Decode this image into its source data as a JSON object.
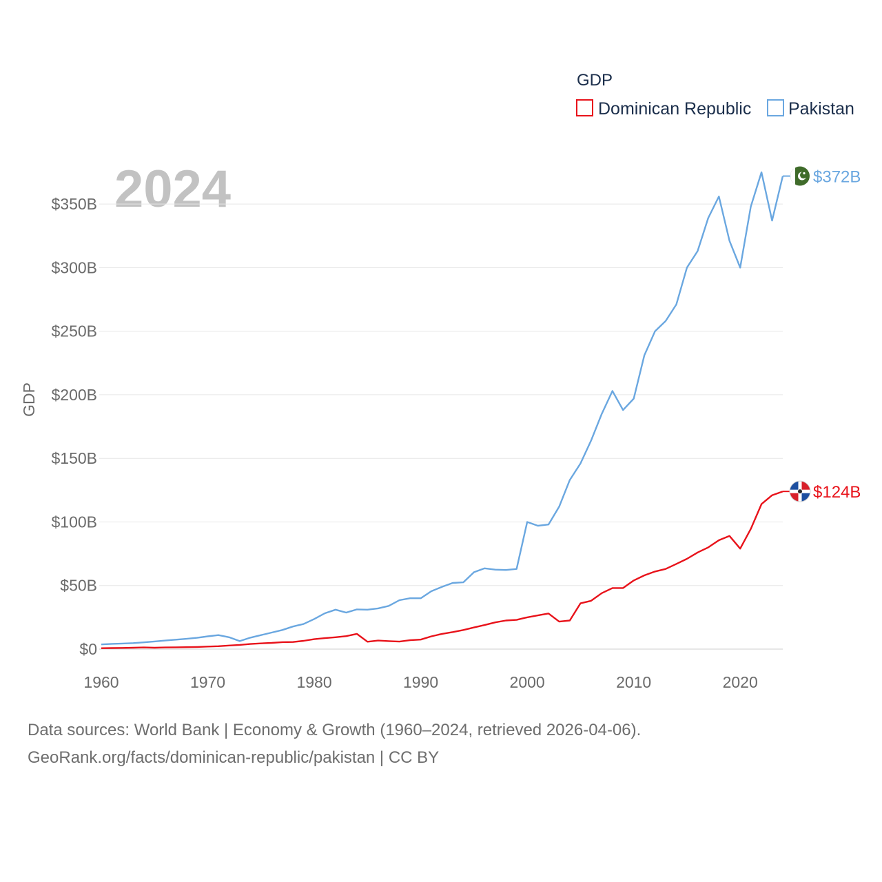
{
  "chart_data": {
    "type": "line",
    "title": "GDP",
    "ylabel": "GDP",
    "xlabel": "",
    "year_label": "2024",
    "xlim": [
      1960,
      2024
    ],
    "ylim": [
      0,
      375
    ],
    "x_ticks": [
      1960,
      1970,
      1980,
      1990,
      2000,
      2010,
      2020
    ],
    "y_ticks": [
      {
        "value": 0,
        "label": "$0"
      },
      {
        "value": 50,
        "label": "$50B"
      },
      {
        "value": 100,
        "label": "$100B"
      },
      {
        "value": 150,
        "label": "$150B"
      },
      {
        "value": 200,
        "label": "$200B"
      },
      {
        "value": 250,
        "label": "$250B"
      },
      {
        "value": 300,
        "label": "$300B"
      },
      {
        "value": 350,
        "label": "$350B"
      }
    ],
    "grid": true,
    "legend_position": "top-right",
    "units": "billion USD",
    "series": [
      {
        "name": "Dominican Republic",
        "color": "#e8121a",
        "end_label": "$124B",
        "flag": "dominican-republic-flag-icon",
        "x": [
          1960,
          1961,
          1962,
          1963,
          1964,
          1965,
          1966,
          1967,
          1968,
          1969,
          1970,
          1971,
          1972,
          1973,
          1974,
          1975,
          1976,
          1977,
          1978,
          1979,
          1980,
          1981,
          1982,
          1983,
          1984,
          1985,
          1986,
          1987,
          1988,
          1989,
          1990,
          1991,
          1992,
          1993,
          1994,
          1995,
          1996,
          1997,
          1998,
          1999,
          2000,
          2001,
          2002,
          2003,
          2004,
          2005,
          2006,
          2007,
          2008,
          2009,
          2010,
          2011,
          2012,
          2013,
          2014,
          2015,
          2016,
          2017,
          2018,
          2019,
          2020,
          2021,
          2022,
          2023,
          2024
        ],
        "values": [
          0.7,
          0.8,
          0.9,
          1.1,
          1.3,
          1.1,
          1.3,
          1.4,
          1.5,
          1.7,
          2.0,
          2.3,
          2.8,
          3.3,
          4.0,
          4.5,
          4.9,
          5.5,
          5.6,
          6.5,
          7.8,
          8.6,
          9.3,
          10.2,
          12.0,
          5.8,
          6.7,
          6.3,
          5.9,
          7.0,
          7.5,
          10.0,
          12.0,
          13.4,
          15.0,
          17.0,
          18.9,
          21.0,
          22.5,
          23.0,
          25.0,
          26.5,
          28.0,
          21.6,
          22.5,
          36.0,
          38.0,
          44.0,
          48.0,
          48.0,
          54.0,
          58.0,
          61.0,
          63.0,
          67.0,
          71.0,
          76.0,
          80.0,
          85.6,
          89.0,
          79.0,
          94.5,
          114.0,
          121.0,
          124.0
        ]
      },
      {
        "name": "Pakistan",
        "color": "#6aa7e0",
        "end_label": "$372B",
        "flag": "pakistan-flag-icon",
        "x": [
          1960,
          1961,
          1962,
          1963,
          1964,
          1965,
          1966,
          1967,
          1968,
          1969,
          1970,
          1971,
          1972,
          1973,
          1974,
          1975,
          1976,
          1977,
          1978,
          1979,
          1980,
          1981,
          1982,
          1983,
          1984,
          1985,
          1986,
          1987,
          1988,
          1989,
          1990,
          1991,
          1992,
          1993,
          1994,
          1995,
          1996,
          1997,
          1998,
          1999,
          2000,
          2001,
          2002,
          2003,
          2004,
          2005,
          2006,
          2007,
          2008,
          2009,
          2010,
          2011,
          2012,
          2013,
          2014,
          2015,
          2016,
          2017,
          2018,
          2019,
          2020,
          2021,
          2022,
          2023,
          2024
        ],
        "values": [
          3.7,
          4.1,
          4.4,
          4.7,
          5.3,
          6.0,
          6.7,
          7.4,
          8.1,
          8.9,
          10.0,
          11.0,
          9.3,
          6.3,
          9.0,
          11.0,
          13.0,
          15.0,
          17.8,
          19.7,
          23.7,
          28.2,
          31.0,
          28.7,
          31.2,
          31.0,
          32.0,
          34.0,
          38.5,
          40.0,
          40.0,
          45.5,
          49.0,
          52.0,
          52.5,
          60.5,
          63.5,
          62.5,
          62.2,
          63.0,
          100.0,
          97.0,
          98.0,
          112.0,
          133.0,
          146.0,
          164.0,
          185.0,
          203.0,
          188.0,
          197.0,
          231.0,
          250.0,
          258.0,
          271.0,
          300.0,
          313.0,
          339.0,
          356.0,
          321.0,
          300.0,
          348.0,
          375.0,
          337.0,
          372.0
        ]
      }
    ],
    "source_lines": [
      "Data sources: World Bank | Economy & Growth (1960–2024, retrieved 2026-04-06).",
      "GeoRank.org/facts/dominican-republic/pakistan | CC BY"
    ]
  }
}
